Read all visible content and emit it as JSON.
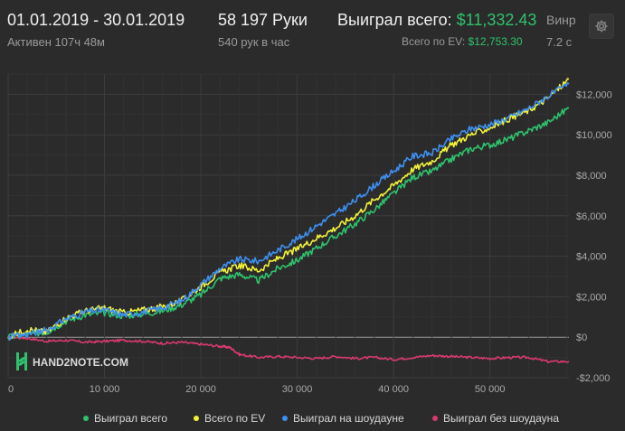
{
  "header": {
    "date_range": "01.01.2019 - 30.01.2019",
    "active_time": "Активен 107ч 48м",
    "hands": "58 197 Руки",
    "hands_per_hour": "540 рук в час",
    "won_label": "Выиграл всего:",
    "won_value": "$11,332.43",
    "ev_label": "Всего по EV:",
    "ev_value": "$12,753.30",
    "winrate_label_partial": "Винр",
    "winrate_value_partial": "7.2 с"
  },
  "colors": {
    "won": "#2fc26d",
    "ev": "#f2f23b",
    "showdown": "#3d8ff0",
    "non_showdown": "#d93a6e",
    "zero_line": "#9a9a9a"
  },
  "chart_data": {
    "type": "line",
    "title": "",
    "xlabel": "",
    "ylabel": "",
    "xlim": [
      0,
      58197
    ],
    "ylim": [
      -2000,
      13000
    ],
    "y_ticks": [
      12000,
      10000,
      8000,
      6000,
      4000,
      2000,
      0,
      -2000
    ],
    "y_tick_labels": [
      "$12,000",
      "$10,000",
      "$8,000",
      "$6,000",
      "$4,000",
      "$2,000",
      "$0",
      "-$2,000"
    ],
    "x_ticks": [
      0,
      10000,
      20000,
      30000,
      40000,
      50000
    ],
    "x_tick_labels": [
      "0",
      "10 000",
      "20 000",
      "30 000",
      "40 000",
      "50 000"
    ],
    "grid": true,
    "legend_position": "bottom",
    "series": [
      {
        "name": "Выиграл всего",
        "color": "#2fc26d",
        "x": [
          0,
          2000,
          4000,
          6000,
          8000,
          10000,
          12000,
          14000,
          16000,
          18000,
          20000,
          22000,
          24000,
          26000,
          28000,
          30000,
          32000,
          34000,
          36000,
          38000,
          40000,
          42000,
          44000,
          46000,
          48000,
          50000,
          52000,
          54000,
          56000,
          58197
        ],
        "y": [
          0,
          150,
          250,
          800,
          1100,
          1200,
          1050,
          1150,
          1300,
          1600,
          2100,
          2900,
          3100,
          2800,
          3400,
          3800,
          4400,
          5000,
          5600,
          6300,
          7100,
          7900,
          8200,
          8800,
          9300,
          9500,
          9800,
          10200,
          10600,
          11332
        ]
      },
      {
        "name": "Всего по EV",
        "color": "#f2f23b",
        "x": [
          0,
          2000,
          4000,
          6000,
          8000,
          10000,
          12000,
          14000,
          16000,
          18000,
          20000,
          22000,
          24000,
          26000,
          28000,
          30000,
          32000,
          34000,
          36000,
          38000,
          40000,
          42000,
          44000,
          46000,
          48000,
          50000,
          52000,
          54000,
          56000,
          58197
        ],
        "y": [
          0,
          400,
          250,
          950,
          1300,
          1450,
          1200,
          1350,
          1500,
          1800,
          2500,
          3200,
          3550,
          3300,
          3900,
          4350,
          4900,
          5400,
          6000,
          6800,
          7500,
          8300,
          8700,
          9500,
          10000,
          10350,
          10800,
          11200,
          11800,
          12753
        ]
      },
      {
        "name": "Выиграл на шоудауне",
        "color": "#3d8ff0",
        "x": [
          0,
          2000,
          4000,
          6000,
          8000,
          10000,
          12000,
          14000,
          16000,
          18000,
          20000,
          22000,
          24000,
          26000,
          28000,
          30000,
          32000,
          34000,
          36000,
          38000,
          40000,
          42000,
          44000,
          46000,
          48000,
          50000,
          52000,
          54000,
          56000,
          58197
        ],
        "y": [
          0,
          150,
          350,
          900,
          1250,
          1350,
          1100,
          1250,
          1450,
          1800,
          2600,
          3400,
          3850,
          3750,
          4300,
          4850,
          5500,
          6100,
          6750,
          7500,
          8200,
          8950,
          9100,
          9800,
          10300,
          10500,
          10850,
          11300,
          11900,
          12500
        ]
      },
      {
        "name": "Выиграл без шоудауна",
        "color": "#d93a6e",
        "x": [
          0,
          2000,
          4000,
          6000,
          8000,
          10000,
          12000,
          14000,
          16000,
          18000,
          20000,
          22000,
          23000,
          24000,
          26000,
          28000,
          30000,
          32000,
          34000,
          36000,
          38000,
          40000,
          42000,
          44000,
          46000,
          48000,
          50000,
          52000,
          54000,
          56000,
          58197
        ],
        "y": [
          0,
          -50,
          -200,
          -150,
          -250,
          -200,
          -150,
          -200,
          -300,
          -250,
          -350,
          -450,
          -500,
          -850,
          -1000,
          -950,
          -1000,
          -1050,
          -950,
          -1050,
          -1000,
          -1100,
          -1000,
          -900,
          -950,
          -1000,
          -1050,
          -1000,
          -1000,
          -1200,
          -1200
        ]
      }
    ]
  },
  "watermark": {
    "brand": "HAND2NOTE.COM",
    "icon": "hand2note-logo-icon"
  },
  "settings": {
    "icon": "gear-icon"
  }
}
